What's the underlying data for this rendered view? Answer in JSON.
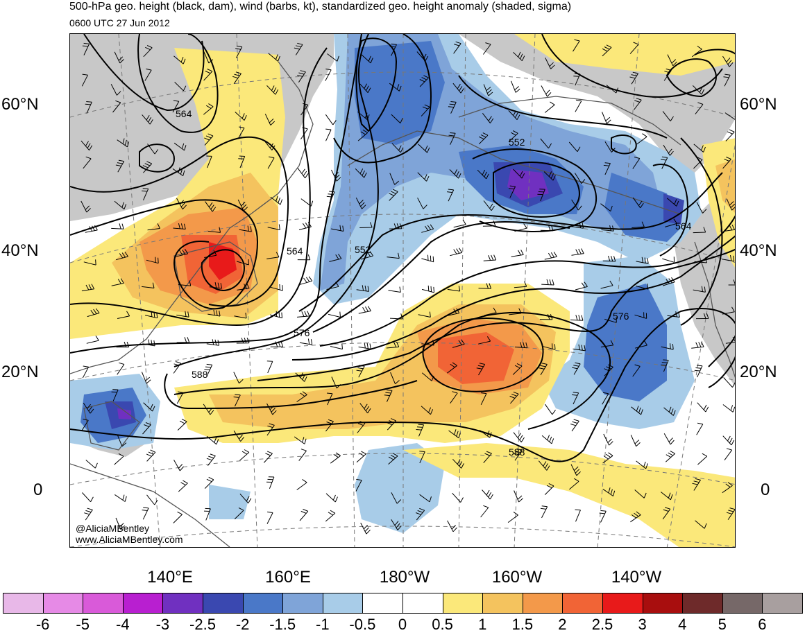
{
  "header": {
    "title": "500-hPa geo. height (black, dam), wind (barbs, kt), standardized geo. height anomaly (shaded, sigma)",
    "subtitle": "0600 UTC 27 Jun 2012"
  },
  "axes": {
    "lat_labels_left": [
      "60°N",
      "40°N",
      "20°N",
      "0"
    ],
    "lat_labels_right": [
      "60°N",
      "40°N",
      "20°N",
      "0"
    ],
    "lon_labels": [
      "140°E",
      "160°E",
      "180°W",
      "160°W",
      "140°W"
    ]
  },
  "contour_labels": [
    "564",
    "552",
    "564",
    "552",
    "576",
    "588",
    "576",
    "564",
    "588"
  ],
  "watermark": {
    "line1": "@AliciaMBentley",
    "line2": "www.AliciaMBentley.com"
  },
  "colorbar": {
    "labels": [
      "-6",
      "-5",
      "-4",
      "-3",
      "-2.5",
      "-2",
      "-1.5",
      "-1",
      "-0.5",
      "0",
      "0.5",
      "1",
      "1.5",
      "2",
      "2.5",
      "3",
      "4",
      "5",
      "6"
    ],
    "colors": [
      "#e8b8e8",
      "#e68ae6",
      "#d95ad9",
      "#b81fd0",
      "#7030c0",
      "#3a48b0",
      "#4a78c8",
      "#7fa4d8",
      "#a8cce8",
      "#ffffff",
      "#ffffff",
      "#fbe87a",
      "#f4c35e",
      "#f3994a",
      "#f16436",
      "#e81a1a",
      "#a80e0e",
      "#6e2a2a",
      "#766868",
      "#a89f9f"
    ]
  },
  "anomaly_colors": {
    "neg_light": "#a8cce8",
    "neg_mid": "#7fa4d8",
    "neg_strong": "#4a78c8",
    "neg_deep": "#3a48b0",
    "neg_extreme": "#7030c0",
    "pos_light": "#fbe87a",
    "pos_mid": "#f4c35e",
    "pos_strong": "#f3994a",
    "pos_deep": "#f16436",
    "pos_extreme": "#e81a1a",
    "land": "#c8c8c8"
  }
}
